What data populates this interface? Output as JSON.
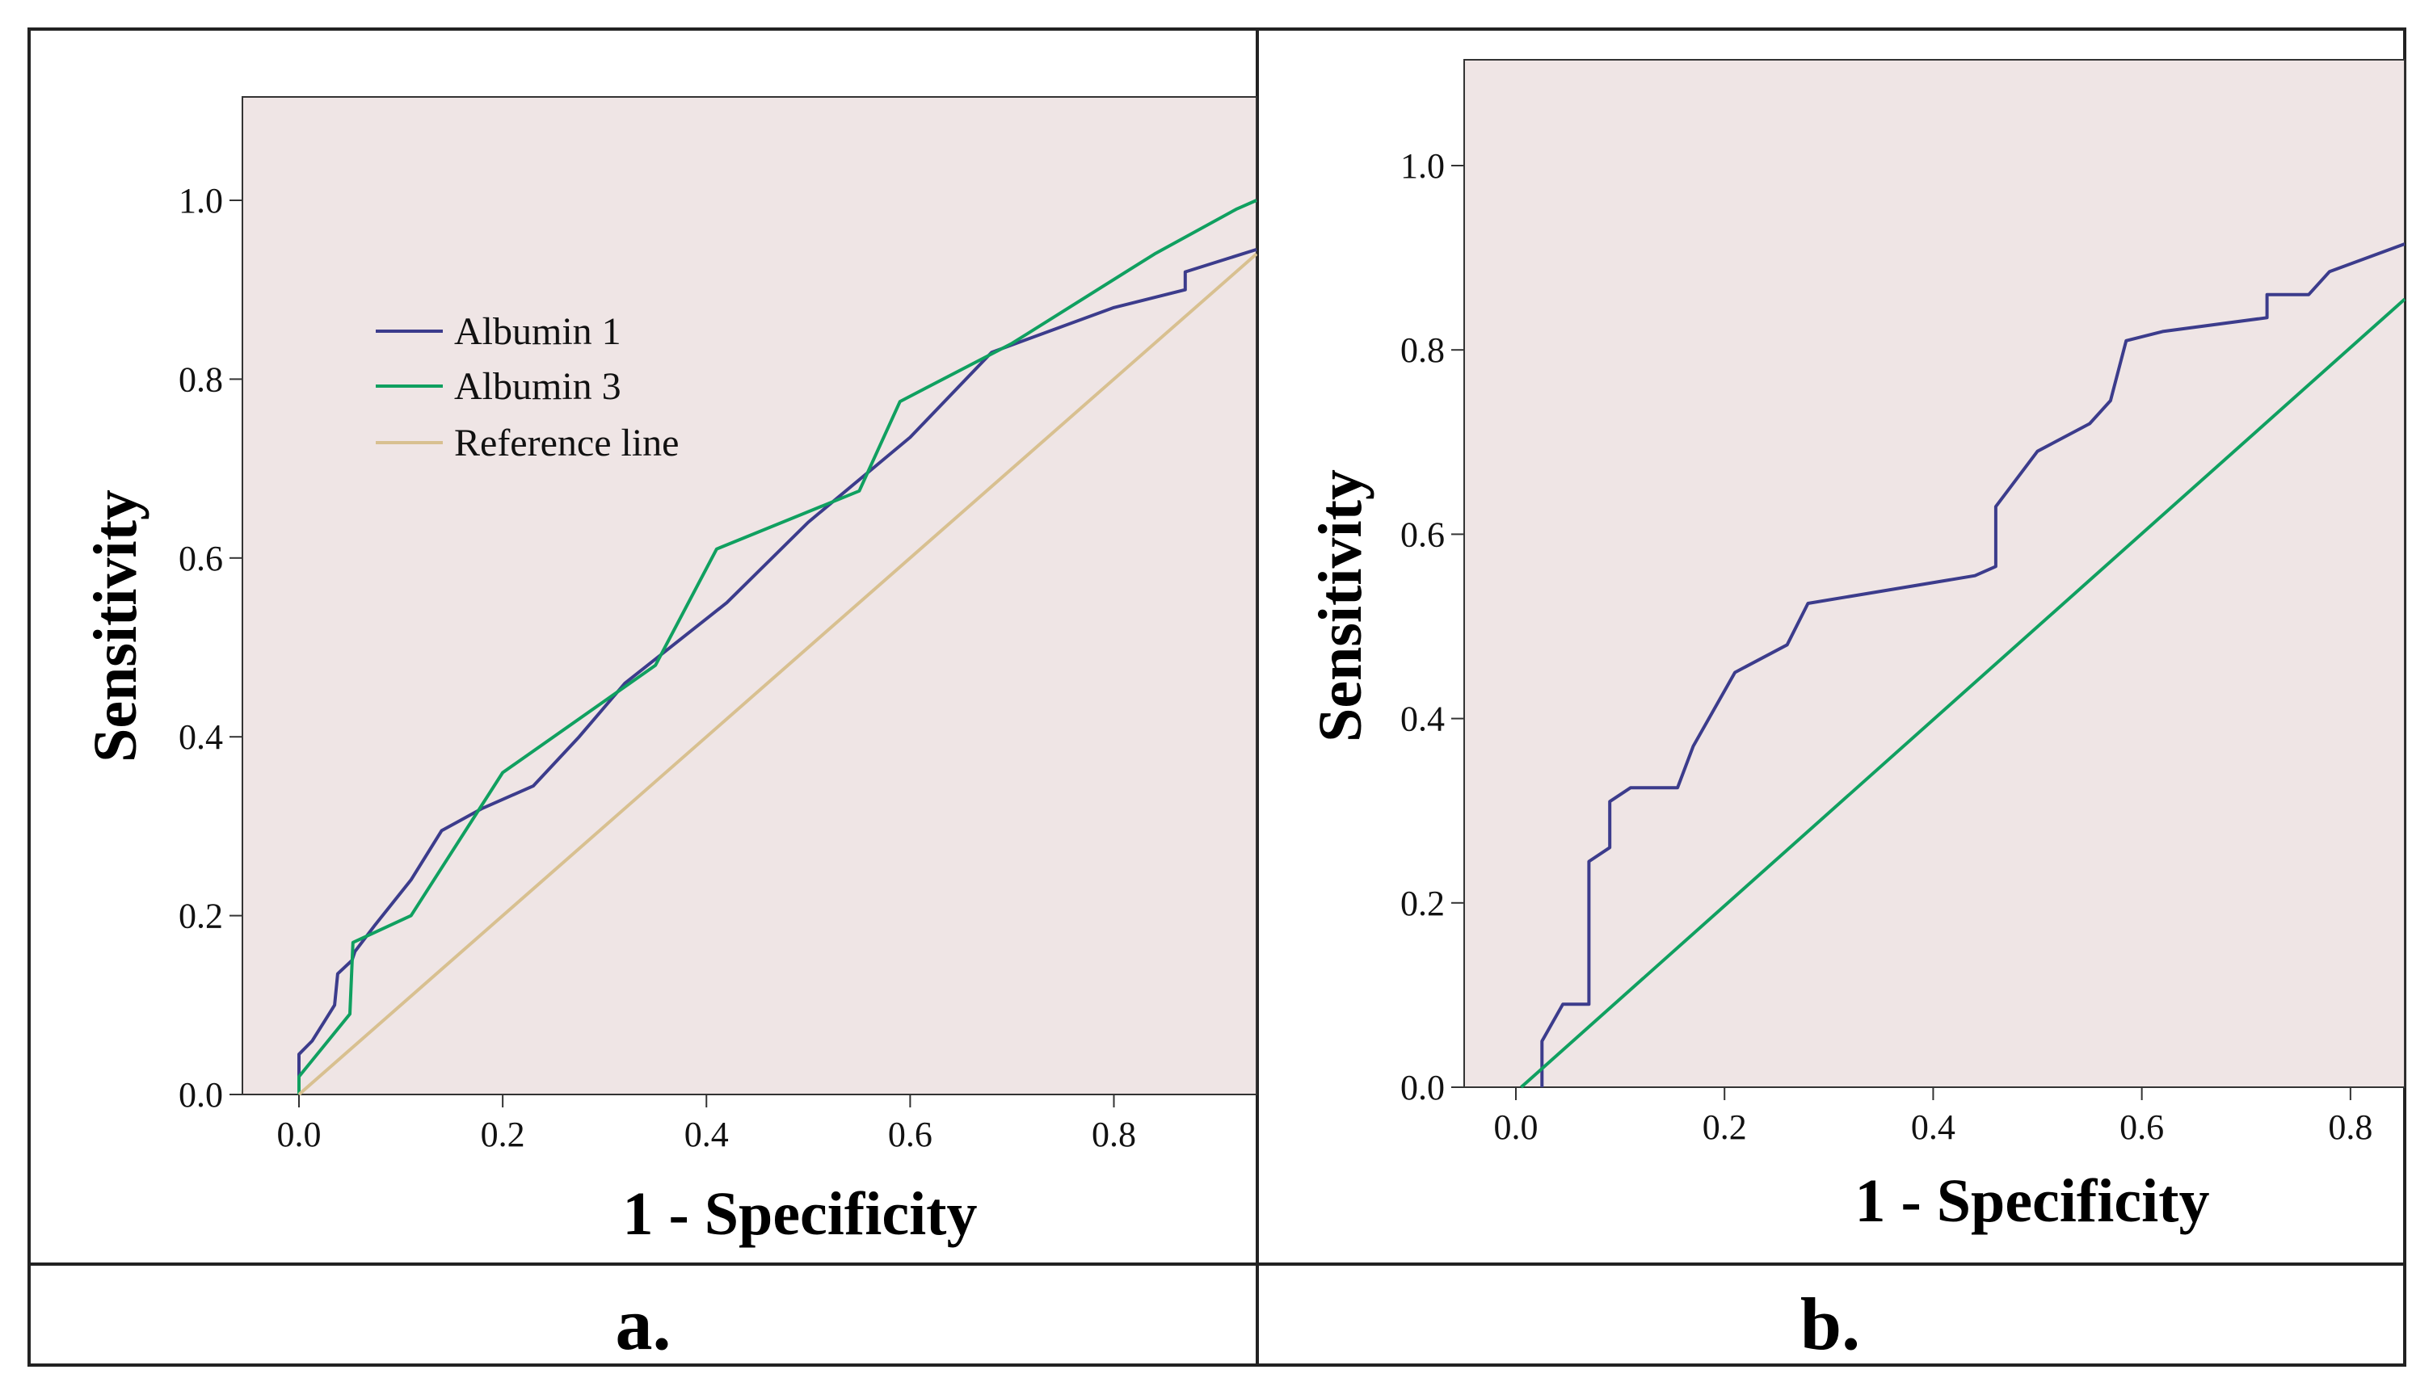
{
  "chart_data": [
    {
      "panel": "a.",
      "type": "line",
      "xlabel": "1 - Specificity",
      "ylabel": "Sensitivity",
      "xlim": [
        -0.057,
        0.94
      ],
      "ylim": [
        0,
        1.11
      ],
      "xticks": [
        "0.0",
        "0.2",
        "0.4",
        "0.6",
        "0.8"
      ],
      "yticks": [
        "0.0",
        "0.2",
        "0.4",
        "0.6",
        "0.8",
        "1.0"
      ],
      "legend_position": "top-left",
      "series": [
        {
          "name": "Albumin 1",
          "color": "#3c3c8c",
          "points": [
            [
              0,
              0
            ],
            [
              0,
              0.045
            ],
            [
              0.013,
              0.06
            ],
            [
              0.024,
              0.08
            ],
            [
              0.035,
              0.1
            ],
            [
              0.038,
              0.135
            ],
            [
              0.052,
              0.15
            ],
            [
              0.055,
              0.16
            ],
            [
              0.075,
              0.19
            ],
            [
              0.11,
              0.24
            ],
            [
              0.14,
              0.295
            ],
            [
              0.18,
              0.32
            ],
            [
              0.23,
              0.345
            ],
            [
              0.275,
              0.4
            ],
            [
              0.32,
              0.46
            ],
            [
              0.42,
              0.55
            ],
            [
              0.5,
              0.64
            ],
            [
              0.6,
              0.735
            ],
            [
              0.68,
              0.83
            ],
            [
              0.8,
              0.88
            ],
            [
              0.87,
              0.9
            ],
            [
              0.87,
              0.92
            ],
            [
              0.94,
              0.945
            ]
          ]
        },
        {
          "name": "Albumin 3",
          "color": "#10a060",
          "points": [
            [
              0,
              0
            ],
            [
              0,
              0.02
            ],
            [
              0.05,
              0.09
            ],
            [
              0.053,
              0.17
            ],
            [
              0.11,
              0.2
            ],
            [
              0.2,
              0.36
            ],
            [
              0.35,
              0.48
            ],
            [
              0.41,
              0.61
            ],
            [
              0.55,
              0.675
            ],
            [
              0.59,
              0.775
            ],
            [
              0.7,
              0.84
            ],
            [
              0.84,
              0.94
            ],
            [
              0.92,
              0.99
            ],
            [
              0.94,
              1.0
            ]
          ]
        },
        {
          "name": "Reference line",
          "color": "#d8c090",
          "points": [
            [
              0,
              0
            ],
            [
              0.94,
              0.94
            ]
          ]
        }
      ]
    },
    {
      "panel": "b.",
      "type": "line",
      "xlabel": "1 - Specificity",
      "ylabel": "Sensitivity",
      "xlim": [
        -0.057,
        0.852
      ],
      "ylim": [
        0,
        1.11
      ],
      "xticks": [
        "0.0",
        "0.2",
        "0.4",
        "0.6",
        "0.8"
      ],
      "yticks": [
        "0.0",
        "0.2",
        "0.4",
        "0.6",
        "0.8",
        "1.0"
      ],
      "series": [
        {
          "name": "",
          "color": "#3c3c8c",
          "points": [
            [
              0.025,
              0
            ],
            [
              0.025,
              0.05
            ],
            [
              0.045,
              0.09
            ],
            [
              0.07,
              0.09
            ],
            [
              0.07,
              0.245
            ],
            [
              0.09,
              0.26
            ],
            [
              0.09,
              0.31
            ],
            [
              0.11,
              0.325
            ],
            [
              0.155,
              0.325
            ],
            [
              0.17,
              0.37
            ],
            [
              0.21,
              0.45
            ],
            [
              0.26,
              0.48
            ],
            [
              0.28,
              0.525
            ],
            [
              0.44,
              0.555
            ],
            [
              0.46,
              0.565
            ],
            [
              0.46,
              0.63
            ],
            [
              0.5,
              0.69
            ],
            [
              0.55,
              0.72
            ],
            [
              0.57,
              0.745
            ],
            [
              0.585,
              0.81
            ],
            [
              0.62,
              0.82
            ],
            [
              0.72,
              0.835
            ],
            [
              0.72,
              0.86
            ],
            [
              0.76,
              0.86
            ],
            [
              0.78,
              0.885
            ],
            [
              0.852,
              0.915
            ]
          ]
        },
        {
          "name": "",
          "color": "#10a060",
          "points": [
            [
              0.005,
              0
            ],
            [
              0.852,
              0.855
            ]
          ]
        }
      ]
    }
  ]
}
